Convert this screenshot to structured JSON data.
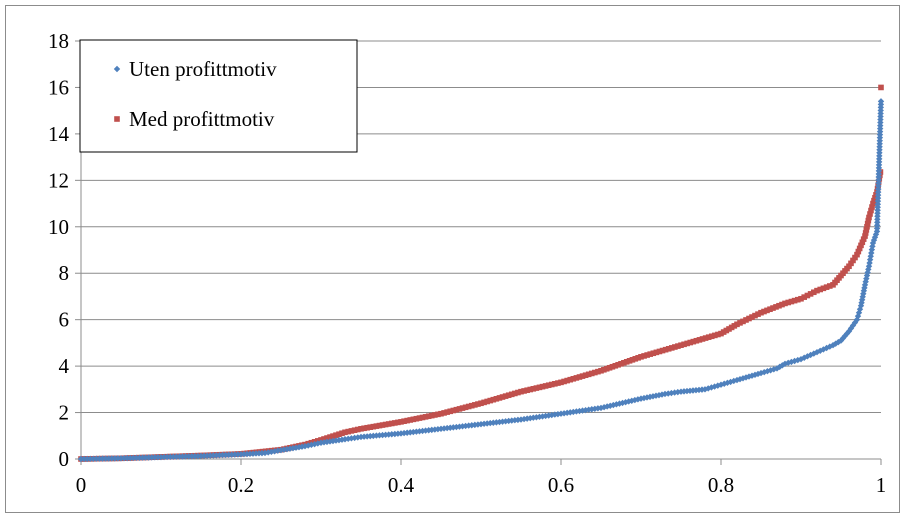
{
  "chart_data": {
    "type": "scatter",
    "title": "",
    "xlabel": "",
    "ylabel": "",
    "xlim": [
      0,
      1
    ],
    "ylim": [
      0,
      18
    ],
    "x_ticks": [
      "0",
      "0.2",
      "0.4",
      "0.6",
      "0.8",
      "1"
    ],
    "y_ticks": [
      "0",
      "2",
      "4",
      "6",
      "8",
      "10",
      "12",
      "14",
      "16",
      "18"
    ],
    "grid": "horizontal",
    "legend": "top-left",
    "series": [
      {
        "name": "Uten profittmotiv",
        "color": "#4f81bd",
        "marker": "diamond",
        "points": [
          [
            0.0,
            0.0
          ],
          [
            0.05,
            0.03
          ],
          [
            0.1,
            0.08
          ],
          [
            0.15,
            0.13
          ],
          [
            0.2,
            0.2
          ],
          [
            0.23,
            0.26
          ],
          [
            0.25,
            0.38
          ],
          [
            0.28,
            0.55
          ],
          [
            0.3,
            0.7
          ],
          [
            0.33,
            0.85
          ],
          [
            0.35,
            0.95
          ],
          [
            0.4,
            1.1
          ],
          [
            0.45,
            1.3
          ],
          [
            0.5,
            1.5
          ],
          [
            0.55,
            1.7
          ],
          [
            0.6,
            1.95
          ],
          [
            0.65,
            2.2
          ],
          [
            0.7,
            2.6
          ],
          [
            0.73,
            2.8
          ],
          [
            0.75,
            2.9
          ],
          [
            0.78,
            3.0
          ],
          [
            0.8,
            3.2
          ],
          [
            0.82,
            3.4
          ],
          [
            0.85,
            3.7
          ],
          [
            0.87,
            3.9
          ],
          [
            0.88,
            4.1
          ],
          [
            0.9,
            4.3
          ],
          [
            0.92,
            4.6
          ],
          [
            0.94,
            4.9
          ],
          [
            0.95,
            5.1
          ],
          [
            0.96,
            5.5
          ],
          [
            0.97,
            6.0
          ],
          [
            0.975,
            6.6
          ],
          [
            0.98,
            7.5
          ],
          [
            0.985,
            8.3
          ],
          [
            0.99,
            9.3
          ],
          [
            0.995,
            9.8
          ],
          [
            1.0,
            15.4
          ]
        ]
      },
      {
        "name": "Med profittmotiv",
        "color": "#c0504d",
        "marker": "square",
        "points": [
          [
            0.0,
            0.0
          ],
          [
            0.05,
            0.03
          ],
          [
            0.1,
            0.09
          ],
          [
            0.15,
            0.15
          ],
          [
            0.2,
            0.22
          ],
          [
            0.25,
            0.4
          ],
          [
            0.28,
            0.62
          ],
          [
            0.3,
            0.82
          ],
          [
            0.33,
            1.15
          ],
          [
            0.35,
            1.3
          ],
          [
            0.4,
            1.6
          ],
          [
            0.45,
            1.95
          ],
          [
            0.5,
            2.4
          ],
          [
            0.55,
            2.9
          ],
          [
            0.6,
            3.3
          ],
          [
            0.65,
            3.8
          ],
          [
            0.7,
            4.4
          ],
          [
            0.75,
            4.9
          ],
          [
            0.8,
            5.4
          ],
          [
            0.82,
            5.8
          ],
          [
            0.85,
            6.3
          ],
          [
            0.88,
            6.7
          ],
          [
            0.9,
            6.9
          ],
          [
            0.92,
            7.25
          ],
          [
            0.94,
            7.5
          ],
          [
            0.95,
            7.9
          ],
          [
            0.96,
            8.3
          ],
          [
            0.97,
            8.8
          ],
          [
            0.975,
            9.2
          ],
          [
            0.98,
            9.6
          ],
          [
            0.985,
            10.4
          ],
          [
            0.99,
            11.0
          ],
          [
            0.995,
            11.5
          ],
          [
            1.0,
            12.5
          ],
          [
            1.0,
            16.0
          ]
        ]
      }
    ]
  }
}
